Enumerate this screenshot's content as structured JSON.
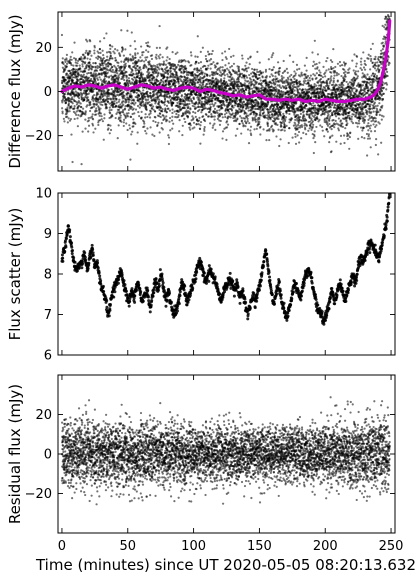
{
  "chart_data": [
    {
      "type": "scatter",
      "panel": "top",
      "ylabel": "Difference flux (mJy)",
      "xlabel": "",
      "xlim": [
        -3,
        253
      ],
      "ylim": [
        -36,
        36
      ],
      "xticks": [
        0,
        50,
        100,
        150,
        200,
        250
      ],
      "yticks": [
        -20,
        0,
        20
      ],
      "ytick_labels": [
        "−20",
        "0",
        "20"
      ],
      "show_xtick_labels": false,
      "point_color": "#000000",
      "line_color": "#c800c8",
      "series": [
        {
          "kind": "points",
          "n_points": 6000,
          "x_range": [
            0,
            249
          ],
          "baseline": [
            [
              0,
              2
            ],
            [
              20,
              3
            ],
            [
              50,
              2
            ],
            [
              100,
              1
            ],
            [
              140,
              -2
            ],
            [
              170,
              -4
            ],
            [
              220,
              -4
            ],
            [
              235,
              -3
            ],
            [
              242,
              2
            ],
            [
              246,
              15
            ],
            [
              249,
              34
            ]
          ],
          "scatter_std_mJy": [
            [
              0,
              8.5
            ],
            [
              60,
              8.5
            ],
            [
              130,
              7
            ],
            [
              200,
              7.5
            ],
            [
              240,
              8.5
            ],
            [
              249,
              10
            ]
          ]
        },
        {
          "kind": "line",
          "x": [
            0,
            5,
            10,
            15,
            20,
            25,
            30,
            35,
            40,
            45,
            50,
            55,
            60,
            65,
            70,
            75,
            80,
            85,
            90,
            95,
            100,
            105,
            110,
            115,
            120,
            125,
            130,
            135,
            140,
            145,
            150,
            155,
            160,
            165,
            170,
            175,
            180,
            185,
            190,
            195,
            200,
            205,
            210,
            215,
            220,
            225,
            230,
            235,
            238,
            240,
            242,
            244,
            246,
            248,
            249
          ],
          "y": [
            0,
            1.5,
            2.5,
            2,
            3,
            2.5,
            1.5,
            2.5,
            3,
            2,
            1,
            2,
            3,
            2.5,
            1.5,
            2,
            1,
            0.5,
            1.5,
            2,
            1.5,
            0,
            1,
            0.5,
            -0.5,
            -1,
            -2,
            -1.5,
            -2.5,
            -2,
            -1.5,
            -3.5,
            -3.5,
            -4,
            -3.5,
            -4,
            -3.5,
            -4.5,
            -4,
            -4.5,
            -3.5,
            -4,
            -4.5,
            -4.5,
            -4,
            -3.5,
            -3.5,
            -2.5,
            -1,
            1,
            4,
            9,
            15,
            24,
            32
          ]
        }
      ]
    },
    {
      "type": "scatter",
      "panel": "middle",
      "ylabel": "Flux scatter (mJy)",
      "xlabel": "",
      "xlim": [
        -3,
        253
      ],
      "ylim": [
        6,
        10
      ],
      "xticks": [
        0,
        50,
        100,
        150,
        200,
        250
      ],
      "yticks": [
        6,
        7,
        8,
        9,
        10
      ],
      "ytick_labels": [
        "6",
        "7",
        "8",
        "9",
        "10"
      ],
      "show_xtick_labels": false,
      "point_color": "#000000",
      "series": [
        {
          "kind": "dense-points",
          "x": [
            0,
            2,
            4,
            5,
            7,
            9,
            11,
            13,
            15,
            17,
            19,
            21,
            23,
            25,
            27,
            29,
            31,
            33,
            35,
            37,
            39,
            41,
            43,
            45,
            47,
            49,
            51,
            53,
            55,
            57,
            59,
            61,
            63,
            65,
            67,
            69,
            71,
            73,
            75,
            77,
            79,
            81,
            83,
            85,
            87,
            89,
            91,
            93,
            95,
            97,
            99,
            101,
            103,
            105,
            107,
            109,
            111,
            113,
            115,
            117,
            119,
            121,
            123,
            125,
            127,
            129,
            131,
            133,
            135,
            137,
            139,
            141,
            143,
            145,
            147,
            149,
            151,
            153,
            155,
            157,
            159,
            161,
            163,
            165,
            167,
            169,
            171,
            173,
            175,
            177,
            179,
            181,
            183,
            185,
            187,
            189,
            191,
            193,
            195,
            197,
            199,
            201,
            203,
            205,
            207,
            209,
            211,
            213,
            215,
            217,
            219,
            221,
            223,
            225,
            227,
            229,
            231,
            233,
            235,
            237,
            239,
            241,
            243,
            245,
            247,
            249
          ],
          "y": [
            8.4,
            8.6,
            9.0,
            9.2,
            8.7,
            8.3,
            8.1,
            8.2,
            8.3,
            8.5,
            8.1,
            8.4,
            8.6,
            8.2,
            8.3,
            7.8,
            7.6,
            7.4,
            7.0,
            7.3,
            7.6,
            7.8,
            7.9,
            8.1,
            7.7,
            7.5,
            7.3,
            7.6,
            7.4,
            7.8,
            7.6,
            7.3,
            7.5,
            7.6,
            7.1,
            7.5,
            7.8,
            7.6,
            8.0,
            7.7,
            7.4,
            7.6,
            7.2,
            7.0,
            7.1,
            7.4,
            7.8,
            7.6,
            7.3,
            7.5,
            7.7,
            7.9,
            8.2,
            8.3,
            8.1,
            7.8,
            8.0,
            8.1,
            7.9,
            7.8,
            7.5,
            7.3,
            7.6,
            7.7,
            7.9,
            7.8,
            7.6,
            7.8,
            7.4,
            7.6,
            7.3,
            7.0,
            7.2,
            7.5,
            7.3,
            7.6,
            7.8,
            8.3,
            8.6,
            8.0,
            7.6,
            7.2,
            7.6,
            7.8,
            7.3,
            7.1,
            6.9,
            7.2,
            7.5,
            7.8,
            7.6,
            7.4,
            7.7,
            8.0,
            8.1,
            8.0,
            7.6,
            7.3,
            7.1,
            7.0,
            6.8,
            7.0,
            7.3,
            7.6,
            7.3,
            7.5,
            7.8,
            7.6,
            7.3,
            7.6,
            7.8,
            8.0,
            7.8,
            8.2,
            8.4,
            8.3,
            8.5,
            8.7,
            8.8,
            8.6,
            8.5,
            8.4,
            8.7,
            9.0,
            9.4,
            10.0
          ]
        }
      ]
    },
    {
      "type": "scatter",
      "panel": "bottom",
      "ylabel": "Residual flux (mJy)",
      "xlabel": "Time (minutes) since UT 2020-05-05 08:20:13.632",
      "xlim": [
        -3,
        253
      ],
      "ylim": [
        -40,
        40
      ],
      "xticks": [
        0,
        50,
        100,
        150,
        200,
        250
      ],
      "xtick_labels": [
        "0",
        "50",
        "100",
        "150",
        "200",
        "250"
      ],
      "yticks": [
        -20,
        0,
        20
      ],
      "ytick_labels": [
        "−20",
        "0",
        "20"
      ],
      "show_xtick_labels": true,
      "point_color": "#000000",
      "series": [
        {
          "kind": "points",
          "n_points": 6000,
          "x_range": [
            0,
            249
          ],
          "baseline": [
            [
              0,
              0
            ],
            [
              249,
              0
            ]
          ],
          "scatter_std_mJy": [
            [
              0,
              8.5
            ],
            [
              60,
              8
            ],
            [
              130,
              7
            ],
            [
              200,
              7.5
            ],
            [
              240,
              8.5
            ],
            [
              249,
              10
            ]
          ]
        }
      ]
    }
  ]
}
